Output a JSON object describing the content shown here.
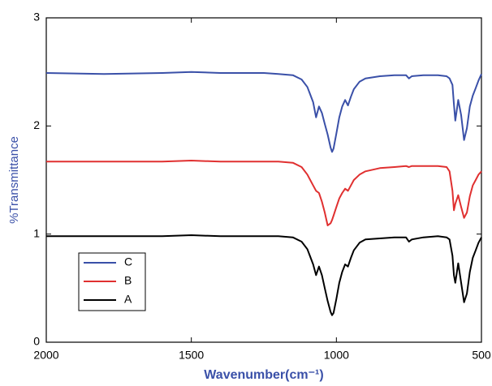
{
  "chart_data": {
    "type": "line",
    "x_label": "Wavenumber(cm⁻¹)",
    "y_label": "%Transmittance",
    "axis_label_color": "#3a50a8",
    "x": [
      2000,
      1800,
      1600,
      1500,
      1400,
      1250,
      1200,
      1150,
      1120,
      1100,
      1080,
      1070,
      1060,
      1050,
      1040,
      1030,
      1020,
      1015,
      1010,
      1000,
      990,
      980,
      970,
      960,
      950,
      940,
      920,
      900,
      850,
      800,
      760,
      750,
      740,
      700,
      650,
      620,
      610,
      600,
      595,
      590,
      580,
      570,
      560,
      550,
      540,
      530,
      520,
      510,
      500
    ],
    "series": [
      {
        "name": "C",
        "color": "#3a50a8",
        "values": [
          2.49,
          2.48,
          2.49,
          2.5,
          2.49,
          2.49,
          2.48,
          2.47,
          2.43,
          2.36,
          2.22,
          2.08,
          2.18,
          2.12,
          2.02,
          1.92,
          1.8,
          1.76,
          1.79,
          1.93,
          2.08,
          2.18,
          2.24,
          2.19,
          2.27,
          2.34,
          2.41,
          2.44,
          2.46,
          2.47,
          2.47,
          2.44,
          2.46,
          2.47,
          2.47,
          2.46,
          2.44,
          2.38,
          2.2,
          2.05,
          2.24,
          2.1,
          1.87,
          1.98,
          2.18,
          2.28,
          2.35,
          2.42,
          2.48
        ]
      },
      {
        "name": "B",
        "color": "#e03030",
        "values": [
          1.67,
          1.67,
          1.67,
          1.68,
          1.67,
          1.67,
          1.67,
          1.66,
          1.62,
          1.55,
          1.45,
          1.4,
          1.38,
          1.3,
          1.2,
          1.08,
          1.1,
          1.13,
          1.17,
          1.25,
          1.33,
          1.38,
          1.42,
          1.4,
          1.45,
          1.5,
          1.55,
          1.58,
          1.61,
          1.62,
          1.63,
          1.62,
          1.63,
          1.63,
          1.63,
          1.62,
          1.58,
          1.4,
          1.22,
          1.28,
          1.36,
          1.25,
          1.15,
          1.2,
          1.35,
          1.45,
          1.5,
          1.55,
          1.58
        ]
      },
      {
        "name": "A",
        "color": "#000000",
        "values": [
          0.98,
          0.98,
          0.98,
          0.99,
          0.98,
          0.98,
          0.98,
          0.97,
          0.93,
          0.86,
          0.72,
          0.62,
          0.7,
          0.62,
          0.5,
          0.38,
          0.28,
          0.25,
          0.27,
          0.4,
          0.55,
          0.65,
          0.72,
          0.7,
          0.78,
          0.85,
          0.92,
          0.95,
          0.96,
          0.97,
          0.97,
          0.93,
          0.95,
          0.97,
          0.98,
          0.97,
          0.95,
          0.8,
          0.62,
          0.55,
          0.73,
          0.55,
          0.37,
          0.45,
          0.65,
          0.78,
          0.85,
          0.92,
          0.97
        ]
      }
    ],
    "xlim": [
      2000,
      500
    ],
    "xticks": [
      2000,
      1500,
      1000,
      500
    ],
    "ylim": [
      0,
      3
    ],
    "yticks": [
      0,
      1,
      2,
      3
    ],
    "legend": "lower-left"
  }
}
